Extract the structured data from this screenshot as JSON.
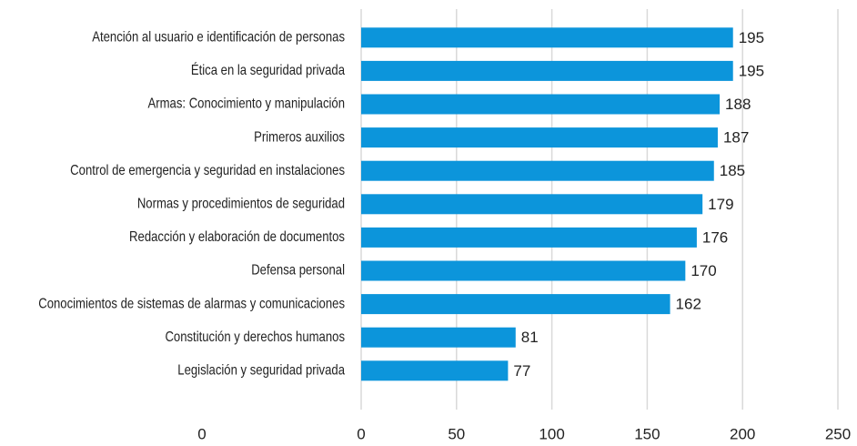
{
  "chart_data": {
    "type": "bar",
    "orientation": "horizontal",
    "categories": [
      "Atención al usuario e identificación de personas",
      "Ética en la seguridad privada",
      "Armas: Conocimiento y manipulación",
      "Primeros auxilios",
      "Control de emergencia y seguridad en instalaciones",
      "Normas y procedimientos de seguridad",
      "Redacción y elaboración de documentos",
      "Defensa personal",
      "Conocimientos de sistemas de alarmas y comunicaciones",
      "Constitución y derechos humanos",
      "Legislación y seguridad privada"
    ],
    "values": [
      195,
      195,
      188,
      187,
      185,
      179,
      176,
      170,
      162,
      81,
      77
    ],
    "color": "#0c95db",
    "xlim": [
      0,
      250
    ],
    "xticks": [
      0,
      50,
      100,
      150,
      200,
      250
    ],
    "grid": true,
    "annotations": [
      {
        "text": "0"
      }
    ]
  }
}
